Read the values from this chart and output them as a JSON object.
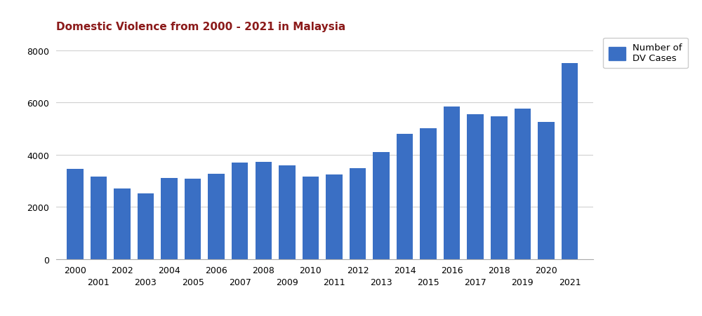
{
  "years": [
    2000,
    2001,
    2002,
    2003,
    2004,
    2005,
    2006,
    2007,
    2008,
    2009,
    2010,
    2011,
    2012,
    2013,
    2014,
    2015,
    2016,
    2017,
    2018,
    2019,
    2020,
    2021
  ],
  "values": [
    3468,
    3173,
    2694,
    2521,
    3094,
    3073,
    3280,
    3700,
    3736,
    3601,
    3173,
    3243,
    3470,
    4109,
    4807,
    5013,
    5836,
    5550,
    5465,
    5757,
    5260,
    7525
  ],
  "bar_color": "#3a6fc4",
  "title": "Domestic Violence from 2000 - 2021 in Malaysia",
  "title_color": "#8b1a1a",
  "legend_label": "Number of\nDV Cases",
  "ylim": [
    0,
    8500
  ],
  "yticks": [
    0,
    2000,
    4000,
    6000,
    8000
  ],
  "background_color": "#ffffff",
  "grid_color": "#d0d0d0",
  "title_fontsize": 11,
  "legend_fontsize": 9.5,
  "tick_fontsize": 9
}
